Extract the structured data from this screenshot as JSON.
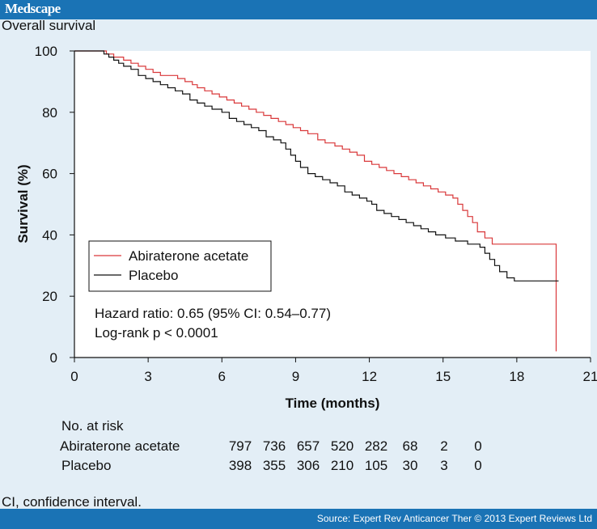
{
  "header": {
    "brand": "Medscape"
  },
  "figure_title": "Overall survival",
  "chart_data": {
    "type": "line",
    "xlabel": "Time (months)",
    "ylabel": "Survival (%)",
    "xlim": [
      0,
      21
    ],
    "ylim": [
      0,
      100
    ],
    "xticks": [
      0,
      3,
      6,
      9,
      12,
      15,
      18,
      21
    ],
    "yticks": [
      0,
      20,
      40,
      60,
      80,
      100
    ],
    "grid": false,
    "legend_position": "center-left",
    "series": [
      {
        "name": "Abiraterone acetate",
        "color": "#d9383a",
        "step": true,
        "points": [
          [
            0,
            100
          ],
          [
            1.0,
            100
          ],
          [
            1.3,
            99
          ],
          [
            1.6,
            98
          ],
          [
            2.0,
            97
          ],
          [
            2.3,
            96
          ],
          [
            2.6,
            95
          ],
          [
            2.9,
            94
          ],
          [
            3.2,
            93
          ],
          [
            3.5,
            92
          ],
          [
            4.2,
            91
          ],
          [
            4.5,
            90
          ],
          [
            4.8,
            89
          ],
          [
            5.0,
            88
          ],
          [
            5.3,
            87
          ],
          [
            5.6,
            86
          ],
          [
            5.9,
            85
          ],
          [
            6.2,
            84
          ],
          [
            6.5,
            83
          ],
          [
            6.8,
            82
          ],
          [
            7.1,
            81
          ],
          [
            7.4,
            80
          ],
          [
            7.7,
            79
          ],
          [
            8.0,
            78
          ],
          [
            8.3,
            77
          ],
          [
            8.6,
            76
          ],
          [
            8.9,
            75
          ],
          [
            9.2,
            74
          ],
          [
            9.5,
            73
          ],
          [
            9.9,
            71
          ],
          [
            10.2,
            70
          ],
          [
            10.6,
            69
          ],
          [
            10.9,
            68
          ],
          [
            11.2,
            67
          ],
          [
            11.5,
            66
          ],
          [
            11.8,
            64
          ],
          [
            12.1,
            63
          ],
          [
            12.4,
            62
          ],
          [
            12.7,
            61
          ],
          [
            13.0,
            60
          ],
          [
            13.3,
            59
          ],
          [
            13.6,
            58
          ],
          [
            13.9,
            57
          ],
          [
            14.2,
            56
          ],
          [
            14.5,
            55
          ],
          [
            14.8,
            54
          ],
          [
            15.1,
            53
          ],
          [
            15.4,
            52
          ],
          [
            15.6,
            50
          ],
          [
            15.8,
            48
          ],
          [
            16.0,
            46
          ],
          [
            16.2,
            44
          ],
          [
            16.4,
            41
          ],
          [
            16.7,
            39
          ],
          [
            17.0,
            37
          ],
          [
            19.6,
            37
          ],
          [
            19.6,
            2
          ]
        ]
      },
      {
        "name": "Placebo",
        "color": "#111111",
        "step": true,
        "points": [
          [
            0,
            100
          ],
          [
            1.0,
            100
          ],
          [
            1.2,
            99
          ],
          [
            1.4,
            98
          ],
          [
            1.6,
            97
          ],
          [
            1.8,
            96
          ],
          [
            2.0,
            95
          ],
          [
            2.3,
            94
          ],
          [
            2.6,
            92
          ],
          [
            2.9,
            91
          ],
          [
            3.2,
            90
          ],
          [
            3.5,
            89
          ],
          [
            3.8,
            88
          ],
          [
            4.1,
            87
          ],
          [
            4.4,
            86
          ],
          [
            4.7,
            84
          ],
          [
            5.0,
            83
          ],
          [
            5.3,
            82
          ],
          [
            5.6,
            81
          ],
          [
            6.0,
            80
          ],
          [
            6.3,
            78
          ],
          [
            6.6,
            77
          ],
          [
            6.9,
            76
          ],
          [
            7.2,
            75
          ],
          [
            7.5,
            74
          ],
          [
            7.8,
            72
          ],
          [
            8.1,
            71
          ],
          [
            8.4,
            70
          ],
          [
            8.6,
            68
          ],
          [
            8.8,
            66
          ],
          [
            9.0,
            64
          ],
          [
            9.2,
            62
          ],
          [
            9.5,
            60
          ],
          [
            9.8,
            59
          ],
          [
            10.1,
            58
          ],
          [
            10.4,
            57
          ],
          [
            10.7,
            56
          ],
          [
            11.0,
            54
          ],
          [
            11.3,
            53
          ],
          [
            11.6,
            52
          ],
          [
            11.9,
            51
          ],
          [
            12.1,
            50
          ],
          [
            12.3,
            48
          ],
          [
            12.6,
            47
          ],
          [
            12.9,
            46
          ],
          [
            13.2,
            45
          ],
          [
            13.5,
            44
          ],
          [
            13.8,
            43
          ],
          [
            14.1,
            42
          ],
          [
            14.4,
            41
          ],
          [
            14.7,
            40
          ],
          [
            15.1,
            39
          ],
          [
            15.5,
            38
          ],
          [
            16.0,
            37
          ],
          [
            16.5,
            36
          ],
          [
            16.7,
            34
          ],
          [
            16.9,
            32
          ],
          [
            17.1,
            30
          ],
          [
            17.3,
            28
          ],
          [
            17.6,
            26
          ],
          [
            17.9,
            25
          ],
          [
            19.7,
            25
          ]
        ]
      }
    ],
    "annotations": [
      "Hazard ratio: 0.65 (95% CI: 0.54–0.77)",
      "Log-rank p < 0.0001"
    ]
  },
  "risk_table": {
    "title": "No. at risk",
    "rows": [
      {
        "label": "Abiraterone acetate",
        "values": [
          "797",
          "736",
          "657",
          "520",
          "282",
          "68",
          "2",
          "0"
        ]
      },
      {
        "label": "Placebo",
        "values": [
          "398",
          "355",
          "306",
          "210",
          "105",
          "30",
          "3",
          "0"
        ]
      }
    ]
  },
  "footnote": "CI, confidence interval.",
  "source": "Source: Expert Rev Anticancer Ther © 2013 Expert Reviews Ltd"
}
